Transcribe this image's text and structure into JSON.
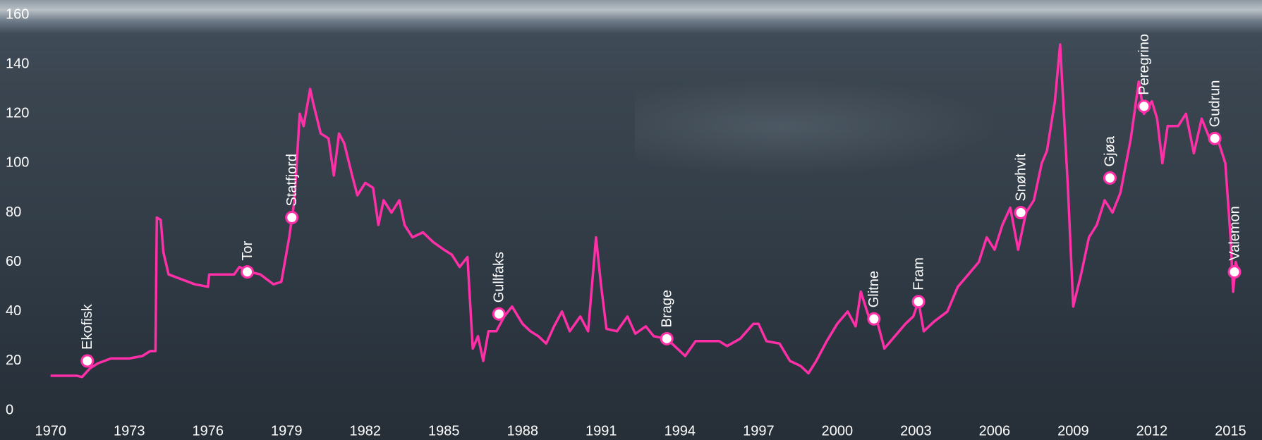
{
  "chart_data": {
    "type": "line",
    "color": "#ff2fa8",
    "xlim": [
      1968.07,
      2016.2
    ],
    "ylim": [
      0,
      160
    ],
    "xticks": [
      1970,
      1973,
      1976,
      1979,
      1982,
      1985,
      1988,
      1991,
      1994,
      1997,
      2000,
      2003,
      2006,
      2009,
      2012,
      2015
    ],
    "yticks": [
      0,
      20,
      40,
      60,
      80,
      100,
      120,
      140,
      160
    ],
    "x": [
      1970.0,
      1971.0,
      1971.2,
      1971.5,
      1971.8,
      1972.3,
      1973.0,
      1973.5,
      1973.8,
      1974.0,
      1974.05,
      1974.2,
      1974.3,
      1974.5,
      1975.0,
      1975.5,
      1976.0,
      1976.05,
      1976.5,
      1977.0,
      1977.2,
      1977.6,
      1978.0,
      1978.5,
      1978.8,
      1979.1,
      1979.3,
      1979.5,
      1979.65,
      1979.9,
      1980.0,
      1980.3,
      1980.6,
      1980.8,
      1981.0,
      1981.2,
      1981.5,
      1981.7,
      1982.0,
      1982.3,
      1982.5,
      1982.7,
      1983.0,
      1983.3,
      1983.5,
      1983.8,
      1984.2,
      1984.6,
      1985.0,
      1985.3,
      1985.6,
      1985.9,
      1986.1,
      1986.3,
      1986.5,
      1986.7,
      1987.0,
      1987.3,
      1987.6,
      1988.0,
      1988.3,
      1988.6,
      1988.9,
      1989.2,
      1989.5,
      1989.8,
      1990.2,
      1990.5,
      1990.8,
      1991.0,
      1991.2,
      1991.6,
      1992.0,
      1992.3,
      1992.7,
      1993.0,
      1993.5,
      1993.9,
      1994.2,
      1994.6,
      1995.0,
      1995.5,
      1995.8,
      1996.3,
      1996.8,
      1997.0,
      1997.3,
      1997.8,
      1998.2,
      1998.6,
      1998.9,
      1999.2,
      1999.6,
      2000.0,
      2000.4,
      2000.7,
      2000.9,
      2001.2,
      2001.5,
      2001.8,
      2002.2,
      2002.6,
      2002.9,
      2003.1,
      2003.3,
      2003.7,
      2004.2,
      2004.6,
      2005.0,
      2005.4,
      2005.7,
      2006.0,
      2006.3,
      2006.6,
      2006.9,
      2007.2,
      2007.5,
      2007.8,
      2008.0,
      2008.3,
      2008.5,
      2008.8,
      2009.0,
      2009.3,
      2009.6,
      2009.9,
      2010.2,
      2010.5,
      2010.8,
      2011.2,
      2011.5,
      2011.7,
      2012.0,
      2012.2,
      2012.4,
      2012.6,
      2013.0,
      2013.3,
      2013.6,
      2013.9,
      2014.2,
      2014.5,
      2014.8,
      2015.0,
      2015.1,
      2015.2,
      2015.3
    ],
    "values": [
      14,
      14,
      13.5,
      17,
      19,
      21,
      21,
      22,
      24,
      24,
      78,
      77,
      64,
      55,
      53,
      51,
      50,
      55,
      55,
      55,
      58,
      56,
      55,
      51,
      52,
      70,
      85,
      120,
      115,
      130,
      125,
      112,
      110,
      95,
      112,
      108,
      95,
      87,
      92,
      90,
      75,
      85,
      80,
      85,
      75,
      70,
      72,
      68,
      65,
      63,
      58,
      62,
      25,
      30,
      20,
      32,
      32,
      38,
      42,
      35,
      32,
      30,
      27,
      34,
      40,
      32,
      38,
      32,
      70,
      50,
      33,
      32,
      38,
      31,
      34,
      30,
      29,
      25,
      22,
      28,
      28,
      28,
      26,
      29,
      35,
      35,
      28,
      27,
      20,
      18,
      15,
      20,
      28,
      35,
      40,
      34,
      48,
      38,
      37,
      25,
      30,
      35,
      38,
      44,
      32,
      36,
      40,
      50,
      55,
      60,
      70,
      65,
      75,
      82,
      65,
      80,
      85,
      100,
      105,
      125,
      148,
      90,
      42,
      55,
      70,
      75,
      85,
      80,
      88,
      110,
      133,
      120,
      125,
      118,
      100,
      115,
      115,
      120,
      104,
      118,
      110,
      110,
      100,
      70,
      48,
      60,
      56
    ],
    "annotations": [
      {
        "label": "Ekofisk",
        "x": 1971.4,
        "y": 20
      },
      {
        "label": "Tor",
        "x": 1977.5,
        "y": 56
      },
      {
        "label": "Statfjord",
        "x": 1979.2,
        "y": 78
      },
      {
        "label": "Gullfaks",
        "x": 1987.1,
        "y": 39
      },
      {
        "label": "Brage",
        "x": 1993.5,
        "y": 29
      },
      {
        "label": "Glitne",
        "x": 2001.4,
        "y": 37
      },
      {
        "label": "Fram",
        "x": 2003.1,
        "y": 44
      },
      {
        "label": "Snøhvit",
        "x": 2007.0,
        "y": 80
      },
      {
        "label": "Gjøa",
        "x": 2010.4,
        "y": 94
      },
      {
        "label": "Peregrino",
        "x": 2011.7,
        "y": 123
      },
      {
        "label": "Gudrun",
        "x": 2014.4,
        "y": 110
      },
      {
        "label": "Valemon",
        "x": 2015.15,
        "y": 56
      }
    ]
  }
}
